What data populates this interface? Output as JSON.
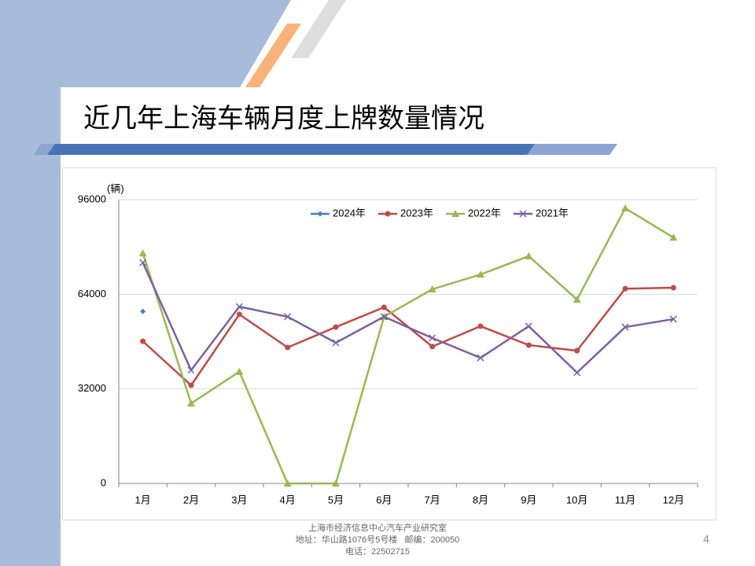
{
  "slide": {
    "title": "近几年上海车辆月度上牌数量情况",
    "footer": [
      "上海市经济信息中心汽车产业研究室",
      "地址：华山路1076号5号楼   邮编：200050",
      "电话：22502715"
    ],
    "page_number": "4"
  },
  "chart_data": {
    "type": "line",
    "ylabel": "(辆)",
    "categories": [
      "1月",
      "2月",
      "3月",
      "4月",
      "5月",
      "6月",
      "7月",
      "8月",
      "9月",
      "10月",
      "11月",
      "12月"
    ],
    "series": [
      {
        "name": "2024年",
        "color": "#4a7ebb",
        "marker": "diamond",
        "values": [
          58200,
          null,
          null,
          null,
          null,
          null,
          null,
          null,
          null,
          null,
          null,
          null
        ]
      },
      {
        "name": "2023年",
        "color": "#be4b48",
        "marker": "circle",
        "values": [
          48100,
          33200,
          57200,
          46000,
          52900,
          59600,
          46300,
          53200,
          46800,
          44900,
          65900,
          66200
        ]
      },
      {
        "name": "2022年",
        "color": "#98b954",
        "marker": "triangle",
        "values": [
          77900,
          27100,
          37800,
          0,
          0,
          56400,
          65700,
          70700,
          76900,
          62200,
          93100,
          83200
        ]
      },
      {
        "name": "2021年",
        "color": "#7d60a0",
        "marker": "x",
        "values": [
          74700,
          38300,
          59800,
          56400,
          47600,
          56400,
          49200,
          42500,
          53200,
          37500,
          52900,
          55600
        ]
      }
    ],
    "ylim": [
      0,
      96000
    ],
    "yticks": [
      0,
      32000,
      64000,
      96000
    ],
    "grid": true,
    "legend": "top"
  }
}
